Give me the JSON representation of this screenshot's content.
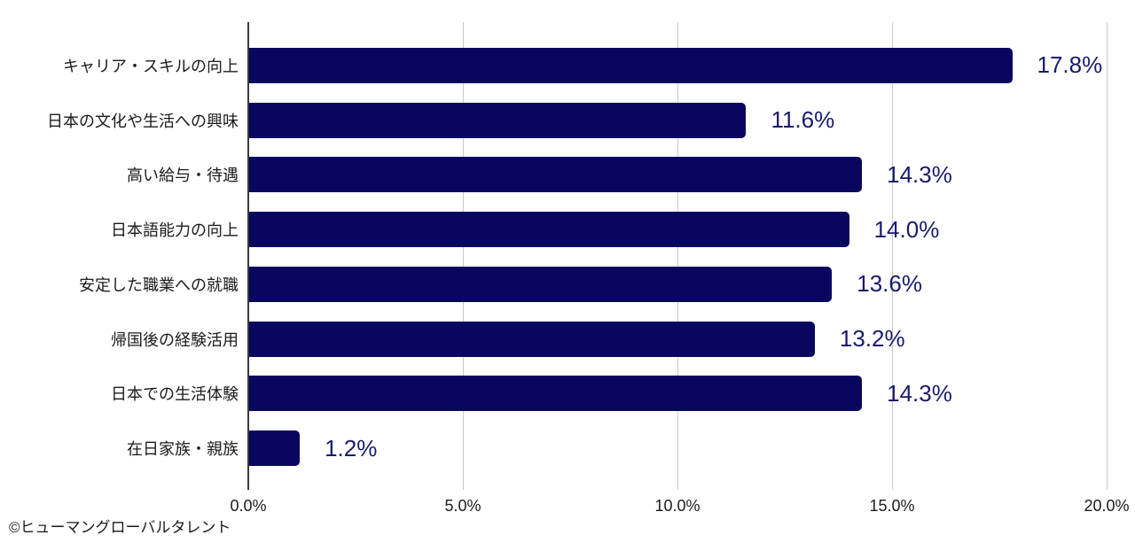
{
  "chart_data": {
    "type": "bar",
    "orientation": "horizontal",
    "title": "",
    "xlabel": "",
    "ylabel": "",
    "categories": [
      "キャリア・スキルの向上",
      "日本の文化や生活への興味",
      "高い給与・待遇",
      "日本語能力の向上",
      "安定した職業への就職",
      "帰国後の経験活用",
      "日本での生活体験",
      "在日家族・親族"
    ],
    "values": [
      17.8,
      11.6,
      14.3,
      14.0,
      13.6,
      13.2,
      14.3,
      1.2
    ],
    "value_labels": [
      "17.8%",
      "11.6%",
      "14.3%",
      "14.0%",
      "13.6%",
      "13.2%",
      "14.3%",
      "1.2%"
    ],
    "xlim": [
      0,
      20
    ],
    "x_tick_values": [
      0,
      5,
      10,
      15,
      20
    ],
    "x_tick_labels": [
      "0.0%",
      "5.0%",
      "10.0%",
      "15.0%",
      "20.0%"
    ],
    "grid": "vertical-gridlines-on",
    "legend": "none",
    "colors": {
      "bar": "#08065f",
      "value_label": "#1a1a6e",
      "axis_line": "#3a3a3a",
      "gridline": "#c9c9c9",
      "text": "#1b1b1b",
      "background": "#ffffff"
    }
  },
  "footer": {
    "credit": "©ヒューマングローバルタレント"
  }
}
